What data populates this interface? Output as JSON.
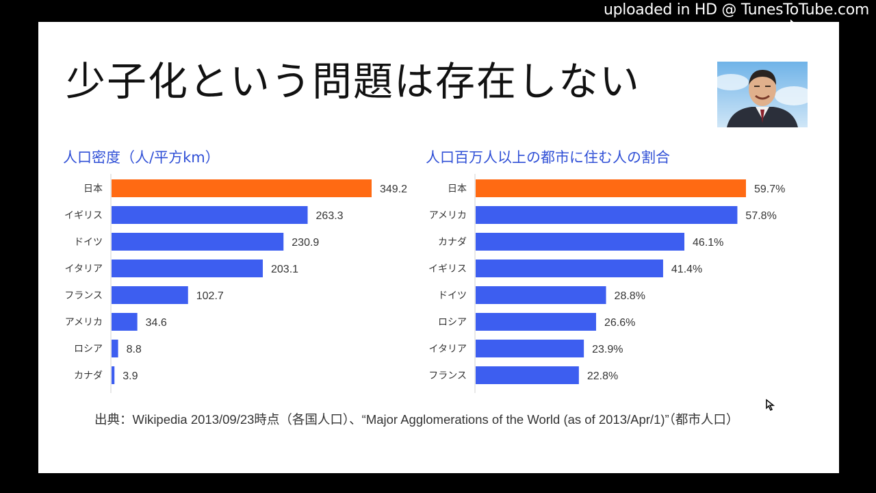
{
  "watermark": "uploaded in HD @ TunesToTube.com",
  "slide": {
    "title": "少子化という問題は存在しない",
    "source": "出典：Wikipedia 2013/09/23時点（各国人口）、“Major Agglomerations of the World (as of 2013/Apr/1)”（都市人口）"
  },
  "colors": {
    "highlight": "#ff6a13",
    "bar": "#3d5ef0",
    "title": "#2f4fd6"
  },
  "icons": [
    "cursor-icon",
    "presenter-photo"
  ],
  "chart_data": [
    {
      "type": "bar",
      "orientation": "horizontal",
      "title": "人口密度（人/平方km）",
      "categories": [
        "日本",
        "イギリス",
        "ドイツ",
        "イタリア",
        "フランス",
        "アメリカ",
        "ロシア",
        "カナダ"
      ],
      "values": [
        349.2,
        263.3,
        230.9,
        203.1,
        102.7,
        34.6,
        8.8,
        3.9
      ],
      "labels": [
        "349.2",
        "263.3",
        "230.9",
        "203.1",
        "102.7",
        "34.6",
        "8.8",
        "3.9"
      ],
      "highlight_index": 0,
      "xlim": [
        0,
        349.2
      ]
    },
    {
      "type": "bar",
      "orientation": "horizontal",
      "title": "人口百万人以上の都市に住む人の割合",
      "categories": [
        "日本",
        "アメリカ",
        "カナダ",
        "イギリス",
        "ドイツ",
        "ロシア",
        "イタリア",
        "フランス"
      ],
      "values": [
        59.7,
        57.8,
        46.1,
        41.4,
        28.8,
        26.6,
        23.9,
        22.8
      ],
      "labels": [
        "59.7%",
        "57.8%",
        "46.1%",
        "41.4%",
        "28.8%",
        "26.6%",
        "23.9%",
        "22.8%"
      ],
      "highlight_index": 0,
      "xlim": [
        0,
        59.7
      ]
    }
  ]
}
